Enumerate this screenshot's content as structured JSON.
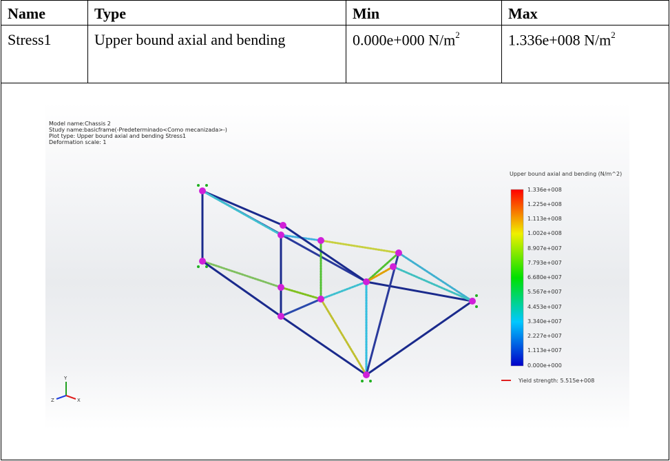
{
  "table": {
    "headers": {
      "name": "Name",
      "type": "Type",
      "min": "Min",
      "max": "Max"
    },
    "rows": [
      {
        "name": "Stress1",
        "type": "Upper bound axial and bending",
        "min": "0.000e+000 N/m",
        "max": "1.336e+008 N/m",
        "unit_exp": "2"
      }
    ]
  },
  "plot": {
    "info": {
      "model": "Model name:Chassis 2",
      "study": "Study name:basicframe(-Predeterminado<Como mecanizada>-)",
      "plot_type": "Plot type: Upper bound axial and bending Stress1",
      "deformation": "Deformation scale: 1"
    },
    "legend": {
      "title": "Upper bound axial and bending (N/m^2)",
      "ticks": [
        "1.336e+008",
        "1.225e+008",
        "1.113e+008",
        "1.002e+008",
        "8.907e+007",
        "7.793e+007",
        "6.680e+007",
        "5.567e+007",
        "4.453e+007",
        "3.340e+007",
        "2.227e+007",
        "1.113e+007",
        "0.000e+000"
      ],
      "yield": "Yield strength: 5.515e+008"
    },
    "triad": {
      "x": "X",
      "y": "Y",
      "z": "Z"
    },
    "colors": {
      "low": "#0000cc",
      "high": "#ff0000",
      "node": "#d020d8"
    }
  }
}
